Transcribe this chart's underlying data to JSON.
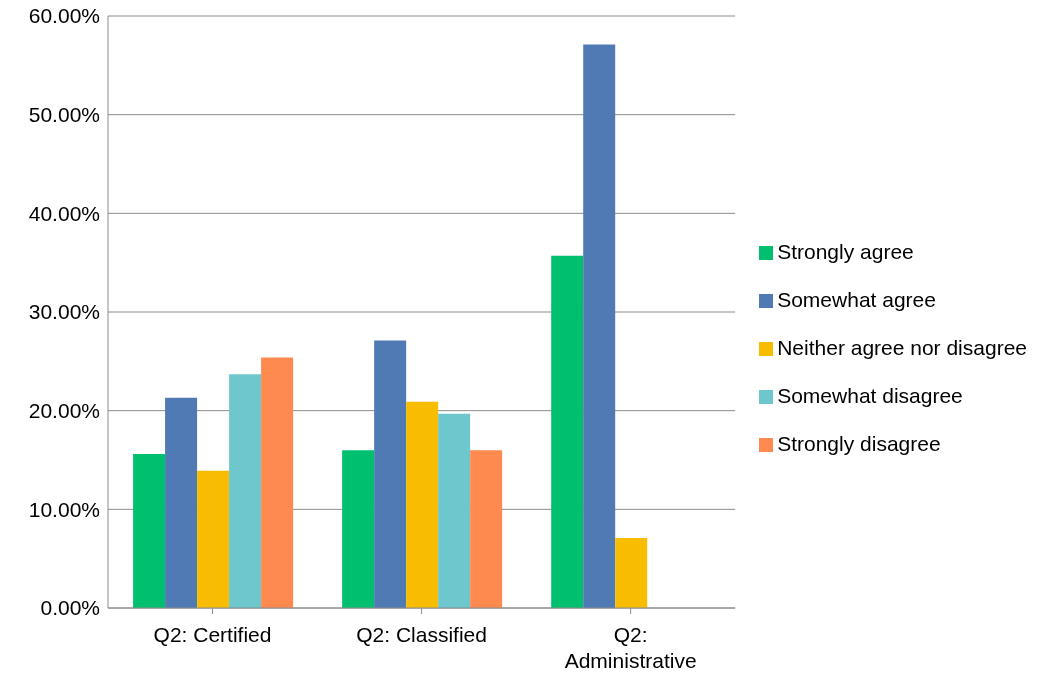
{
  "chart_data": {
    "type": "bar",
    "categories": [
      "Q2: Certified",
      "Q2: Classified",
      "Q2: Administrative"
    ],
    "series": [
      {
        "name": "Strongly agree",
        "color": "#00bf6f",
        "values": [
          15.6,
          16.0,
          35.7
        ]
      },
      {
        "name": "Somewhat agree",
        "color": "#4f7ab3",
        "values": [
          21.3,
          27.1,
          57.1
        ]
      },
      {
        "name": "Neither agree nor disagree",
        "color": "#f8bd00",
        "values": [
          13.9,
          20.9,
          7.1
        ]
      },
      {
        "name": "Somewhat disagree",
        "color": "#6dc7cc",
        "values": [
          23.7,
          19.7,
          0
        ]
      },
      {
        "name": "Strongly disagree",
        "color": "#ff8a50",
        "values": [
          25.4,
          16.0,
          0
        ]
      }
    ],
    "ylim": [
      0,
      60
    ],
    "yticks": [
      {
        "value": 0,
        "label": "0.00%"
      },
      {
        "value": 10,
        "label": "10.00%"
      },
      {
        "value": 20,
        "label": "20.00%"
      },
      {
        "value": 30,
        "label": "30.00%"
      },
      {
        "value": 40,
        "label": "40.00%"
      },
      {
        "value": 50,
        "label": "50.00%"
      },
      {
        "value": 60,
        "label": "60.00%"
      }
    ],
    "grid": "y",
    "legend": "right"
  }
}
